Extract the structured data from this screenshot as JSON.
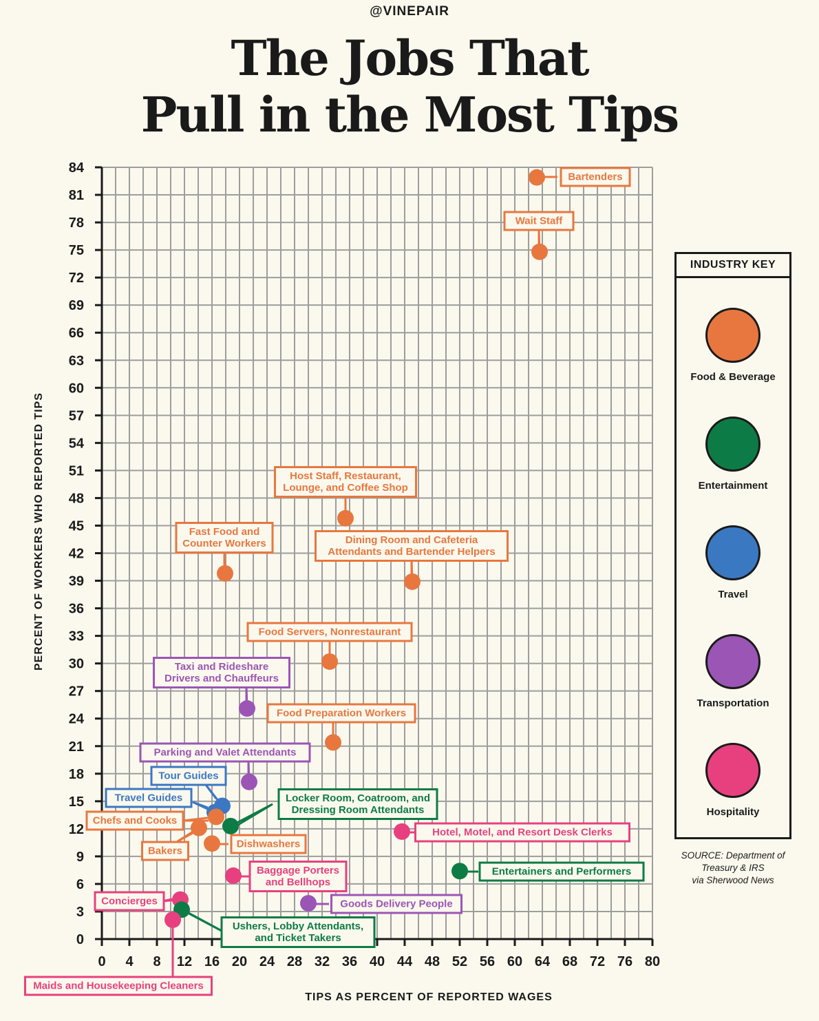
{
  "header": {
    "brand": "@VINEPAIR",
    "title_line1": "The Jobs That",
    "title_line2": "Pull in the Most Tips"
  },
  "legend": {
    "title": "INDUSTRY KEY",
    "items": [
      {
        "label": "Food & Beverage",
        "color": "#e8773f"
      },
      {
        "label": "Entertainment",
        "color": "#0d7b45"
      },
      {
        "label": "Travel",
        "color": "#3b78c2"
      },
      {
        "label": "Transportation",
        "color": "#9b55b5"
      },
      {
        "label": "Hospitality",
        "color": "#e8407e"
      }
    ]
  },
  "source": {
    "line1": "SOURCE: Department of",
    "line2": "Treasury & IRS",
    "line3": "via Sherwood News"
  },
  "chart_data": {
    "type": "scatter",
    "title": "The Jobs That Pull in the Most Tips",
    "xlabel": "TIPS AS PERCENT OF REPORTED WAGES",
    "ylabel": "PERCENT OF WORKERS WHO REPORTED TIPS",
    "xlim": [
      0,
      80
    ],
    "ylim": [
      0,
      84
    ],
    "xticks": [
      0,
      4,
      8,
      12,
      16,
      20,
      24,
      28,
      32,
      36,
      40,
      44,
      48,
      52,
      56,
      60,
      64,
      68,
      72,
      76,
      80
    ],
    "yticks": [
      0,
      3,
      6,
      9,
      12,
      15,
      18,
      21,
      24,
      27,
      30,
      33,
      36,
      39,
      42,
      45,
      48,
      51,
      54,
      57,
      60,
      63,
      66,
      69,
      72,
      75,
      78,
      81,
      84
    ],
    "grid": true,
    "legend_position": "right",
    "industry_colors": {
      "Food & Beverage": "#e8773f",
      "Entertainment": "#0d7b45",
      "Travel": "#3b78c2",
      "Transportation": "#9b55b5",
      "Hospitality": "#e8407e"
    },
    "points": [
      {
        "label": [
          "Bartenders"
        ],
        "industry": "Food & Beverage",
        "x": 63.2,
        "y": 82.9
      },
      {
        "label": [
          "Wait Staff"
        ],
        "industry": "Food & Beverage",
        "x": 63.6,
        "y": 74.8
      },
      {
        "label": [
          "Host Staff, Restaurant,",
          "Lounge, and Coffee Shop"
        ],
        "industry": "Food & Beverage",
        "x": 35.4,
        "y": 45.8
      },
      {
        "label": [
          "Fast Food and",
          "Counter Workers"
        ],
        "industry": "Food & Beverage",
        "x": 17.9,
        "y": 39.8
      },
      {
        "label": [
          "Dining Room and Cafeteria",
          "Attendants and Bartender Helpers"
        ],
        "industry": "Food & Beverage",
        "x": 45.1,
        "y": 38.9
      },
      {
        "label": [
          "Food Servers, Nonrestaurant"
        ],
        "industry": "Food & Beverage",
        "x": 33.1,
        "y": 30.2
      },
      {
        "label": [
          "Taxi and Rideshare",
          "Drivers and Chauffeurs"
        ],
        "industry": "Transportation",
        "x": 21.1,
        "y": 25.1
      },
      {
        "label": [
          "Food Preparation Workers"
        ],
        "industry": "Food & Beverage",
        "x": 33.6,
        "y": 21.4
      },
      {
        "label": [
          "Parking and Valet Attendants"
        ],
        "industry": "Transportation",
        "x": 21.4,
        "y": 17.1
      },
      {
        "label": [
          "Tour Guides"
        ],
        "industry": "Travel",
        "x": 17.5,
        "y": 14.5
      },
      {
        "label": [
          "Travel Guides"
        ],
        "industry": "Travel",
        "x": 16.4,
        "y": 13.8
      },
      {
        "label": [
          "Chefs and Cooks"
        ],
        "industry": "Food & Beverage",
        "x": 16.6,
        "y": 13.3
      },
      {
        "label": [
          "Locker Room, Coatroom, and",
          "Dressing Room Attendants"
        ],
        "industry": "Entertainment",
        "x": 18.7,
        "y": 12.3
      },
      {
        "label": [
          "Bakers"
        ],
        "industry": "Food & Beverage",
        "x": 14.1,
        "y": 12.1
      },
      {
        "label": [
          "Hotel, Motel, and Resort Desk Clerks"
        ],
        "industry": "Hospitality",
        "x": 43.6,
        "y": 11.7
      },
      {
        "label": [
          "Dishwashers"
        ],
        "industry": "Food & Beverage",
        "x": 16.0,
        "y": 10.4
      },
      {
        "label": [
          "Entertainers and Performers"
        ],
        "industry": "Entertainment",
        "x": 52.0,
        "y": 7.4
      },
      {
        "label": [
          "Baggage Porters",
          "and Bellhops"
        ],
        "industry": "Hospitality",
        "x": 19.1,
        "y": 6.9
      },
      {
        "label": [
          "Concierges"
        ],
        "industry": "Hospitality",
        "x": 11.4,
        "y": 4.3
      },
      {
        "label": [
          "Goods Delivery People"
        ],
        "industry": "Transportation",
        "x": 30.0,
        "y": 3.9
      },
      {
        "label": [
          "Ushers, Lobby Attendants,",
          "and Ticket Takers"
        ],
        "industry": "Entertainment",
        "x": 11.6,
        "y": 3.2
      },
      {
        "label": [
          "Maids and Housekeeping Cleaners"
        ],
        "industry": "Hospitality",
        "x": 10.3,
        "y": 2.1
      }
    ]
  }
}
